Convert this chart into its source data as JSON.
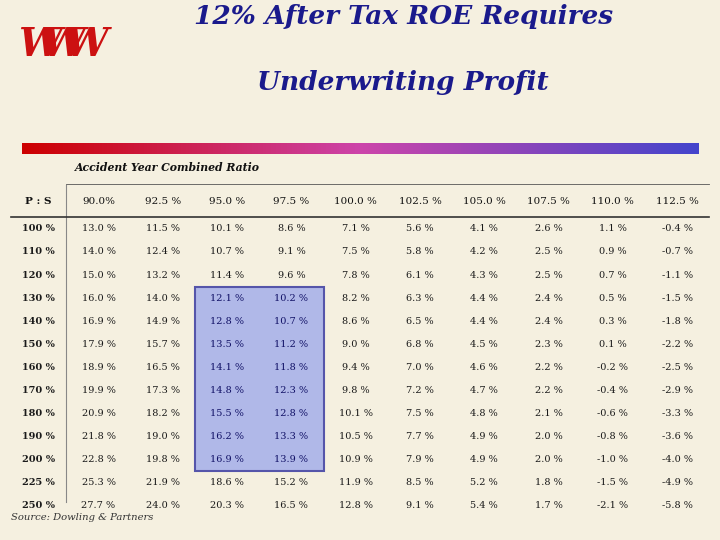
{
  "title_line1": "12% After Tax ROE Requires",
  "title_line2": "Underwriting Profit",
  "title_color": "#1a1a8c",
  "bg_color": "#f5f0e0",
  "source_text": "Source: Dowling & Partners",
  "header_row": [
    "P : S",
    "90.0%",
    "92.5 %",
    "95.0 %",
    "97.5 %",
    "100.0 %",
    "102.5 %",
    "105.0 %",
    "107.5 %",
    "110.0 %",
    "112.5 %"
  ],
  "col_header": "Accident Year Combined Ratio",
  "rows": [
    [
      "100 %",
      "13.0 %",
      "11.5 %",
      "10.1 %",
      "8.6 %",
      "7.1 %",
      "5.6 %",
      "4.1 %",
      "2.6 %",
      "1.1 %",
      "-0.4 %"
    ],
    [
      "110 %",
      "14.0 %",
      "12.4 %",
      "10.7 %",
      "9.1 %",
      "7.5 %",
      "5.8 %",
      "4.2 %",
      "2.5 %",
      "0.9 %",
      "-0.7 %"
    ],
    [
      "120 %",
      "15.0 %",
      "13.2 %",
      "11.4 %",
      "9.6 %",
      "7.8 %",
      "6.1 %",
      "4.3 %",
      "2.5 %",
      "0.7 %",
      "-1.1 %"
    ],
    [
      "130 %",
      "16.0 %",
      "14.0 %",
      "12.1 %",
      "10.2 %",
      "8.2 %",
      "6.3 %",
      "4.4 %",
      "2.4 %",
      "0.5 %",
      "-1.5 %"
    ],
    [
      "140 %",
      "16.9 %",
      "14.9 %",
      "12.8 %",
      "10.7 %",
      "8.6 %",
      "6.5 %",
      "4.4 %",
      "2.4 %",
      "0.3 %",
      "-1.8 %"
    ],
    [
      "150 %",
      "17.9 %",
      "15.7 %",
      "13.5 %",
      "11.2 %",
      "9.0 %",
      "6.8 %",
      "4.5 %",
      "2.3 %",
      "0.1 %",
      "-2.2 %"
    ],
    [
      "160 %",
      "18.9 %",
      "16.5 %",
      "14.1 %",
      "11.8 %",
      "9.4 %",
      "7.0 %",
      "4.6 %",
      "2.2 %",
      "-0.2 %",
      "-2.5 %"
    ],
    [
      "170 %",
      "19.9 %",
      "17.3 %",
      "14.8 %",
      "12.3 %",
      "9.8 %",
      "7.2 %",
      "4.7 %",
      "2.2 %",
      "-0.4 %",
      "-2.9 %"
    ],
    [
      "180 %",
      "20.9 %",
      "18.2 %",
      "15.5 %",
      "12.8 %",
      "10.1 %",
      "7.5 %",
      "4.8 %",
      "2.1 %",
      "-0.6 %",
      "-3.3 %"
    ],
    [
      "190 %",
      "21.8 %",
      "19.0 %",
      "16.2 %",
      "13.3 %",
      "10.5 %",
      "7.7 %",
      "4.9 %",
      "2.0 %",
      "-0.8 %",
      "-3.6 %"
    ],
    [
      "200 %",
      "22.8 %",
      "19.8 %",
      "16.9 %",
      "13.9 %",
      "10.9 %",
      "7.9 %",
      "4.9 %",
      "2.0 %",
      "-1.0 %",
      "-4.0 %"
    ],
    [
      "225 %",
      "25.3 %",
      "21.9 %",
      "18.6 %",
      "15.2 %",
      "11.9 %",
      "8.5 %",
      "5.2 %",
      "1.8 %",
      "-1.5 %",
      "-4.9 %"
    ],
    [
      "250 %",
      "27.7 %",
      "24.0 %",
      "20.3 %",
      "16.5 %",
      "12.8 %",
      "9.1 %",
      "5.4 %",
      "1.7 %",
      "-2.1 %",
      "-5.8 %"
    ]
  ],
  "highlight_rows": [
    3,
    4,
    5,
    6,
    7,
    8,
    9,
    10
  ],
  "highlight_cols": [
    3,
    4
  ],
  "highlight_bg": "#b0b8e8",
  "highlight_border_color": "#5555aa",
  "normal_text_color": "#1a1a1a",
  "highlight_text_color": "#111166",
  "separator_line_color": "#888888",
  "gradient_colors": [
    "#cc0000",
    "#cc44aa",
    "#4444cc"
  ]
}
